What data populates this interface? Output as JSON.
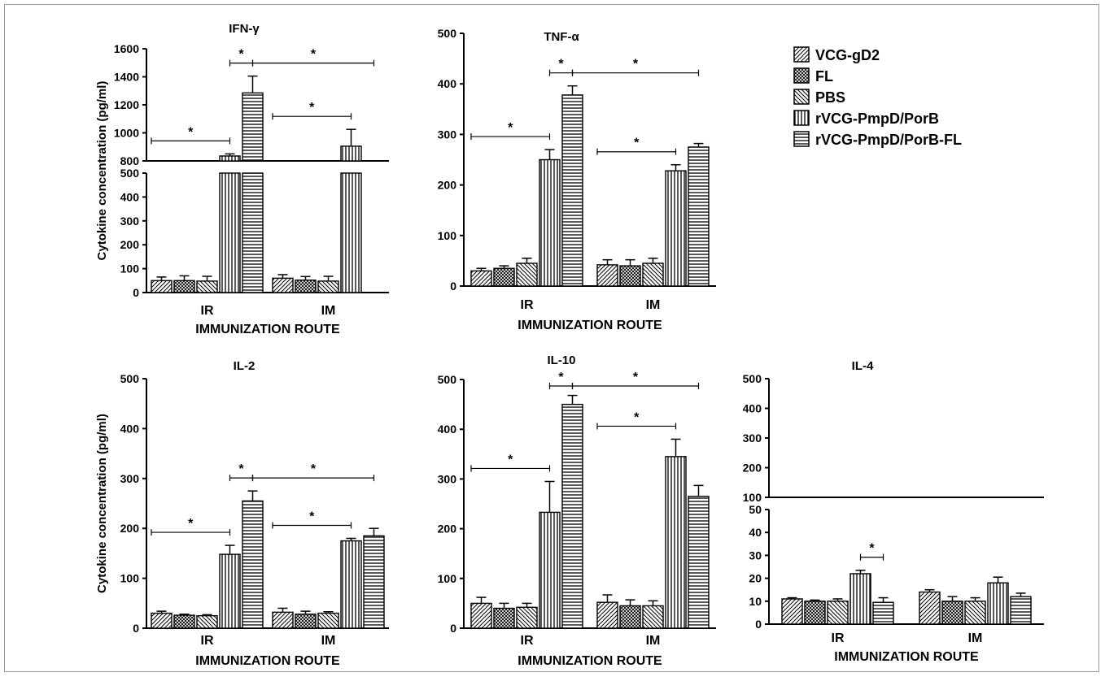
{
  "legend": [
    {
      "name": "VCG-gD2",
      "pattern": "diag-right"
    },
    {
      "name": "FL",
      "pattern": "cross"
    },
    {
      "name": "PBS",
      "pattern": "diag-left"
    },
    {
      "name": "rVCG-PmpD/PorB",
      "pattern": "vertical"
    },
    {
      "name": "rVCG-PmpD/PorB-FL",
      "pattern": "horizontal"
    }
  ],
  "colors": {
    "axis": "#000000",
    "bar_stroke": "#000000",
    "pattern": "#000000",
    "frame": "#9a9a9a"
  },
  "chart_data": [
    {
      "type": "bar",
      "title": "IFN-γ",
      "ylabel": "Cytokine concentration (pg/ml)",
      "xlabel": "IMMUNIZATION ROUTE",
      "categories": [
        "IR",
        "IM"
      ],
      "broken_axis": {
        "lower": [
          0,
          500
        ],
        "upper": [
          800,
          1600
        ]
      },
      "yticks_lower": [
        0,
        100,
        200,
        300,
        400,
        500
      ],
      "yticks_upper": [
        800,
        1000,
        1200,
        1400,
        1600
      ],
      "series": [
        {
          "name": "VCG-gD2",
          "values": [
            50,
            60
          ],
          "errors": [
            15,
            15
          ]
        },
        {
          "name": "FL",
          "values": [
            50,
            52
          ],
          "errors": [
            20,
            15
          ]
        },
        {
          "name": "PBS",
          "values": [
            48,
            48
          ],
          "errors": [
            20,
            20
          ]
        },
        {
          "name": "rVCG-PmpD/PorB",
          "values": [
            835,
            905
          ],
          "errors": [
            15,
            120
          ]
        },
        {
          "name": "rVCG-PmpD/PorB-FL",
          "values": [
            1285,
            null
          ],
          "errors": [
            120,
            null
          ]
        }
      ],
      "annotations": [
        {
          "label": "*",
          "from": [
            0,
            0
          ],
          "to": [
            0,
            3
          ]
        },
        {
          "label": "*",
          "from": [
            0,
            3
          ],
          "to": [
            0,
            4
          ]
        },
        {
          "label": "*",
          "from": [
            0,
            4
          ],
          "to": [
            1,
            4
          ]
        },
        {
          "label": "*",
          "from": [
            1,
            0
          ],
          "to": [
            1,
            3
          ]
        }
      ]
    },
    {
      "type": "bar",
      "title": "TNF-α",
      "ylabel": "",
      "xlabel": "IMMUNIZATION ROUTE",
      "categories": [
        "IR",
        "IM"
      ],
      "ylim": [
        0,
        500
      ],
      "yticks": [
        0,
        100,
        200,
        300,
        400,
        500
      ],
      "series": [
        {
          "name": "VCG-gD2",
          "values": [
            30,
            42
          ],
          "errors": [
            5,
            10
          ]
        },
        {
          "name": "FL",
          "values": [
            35,
            40
          ],
          "errors": [
            5,
            12
          ]
        },
        {
          "name": "PBS",
          "values": [
            45,
            45
          ],
          "errors": [
            10,
            10
          ]
        },
        {
          "name": "rVCG-PmpD/PorB",
          "values": [
            250,
            228
          ],
          "errors": [
            20,
            12
          ]
        },
        {
          "name": "rVCG-PmpD/PorB-FL",
          "values": [
            378,
            275
          ],
          "errors": [
            18,
            7
          ]
        }
      ],
      "annotations": [
        {
          "label": "*",
          "from": [
            0,
            0
          ],
          "to": [
            0,
            3
          ]
        },
        {
          "label": "*",
          "from": [
            0,
            3
          ],
          "to": [
            0,
            4
          ]
        },
        {
          "label": "*",
          "from": [
            0,
            4
          ],
          "to": [
            1,
            4
          ]
        },
        {
          "label": "*",
          "from": [
            1,
            0
          ],
          "to": [
            1,
            3
          ]
        }
      ]
    },
    {
      "type": "bar",
      "title": "IL-2",
      "ylabel": "Cytokine concentration (pg/ml)",
      "xlabel": "IMMUNIZATION ROUTE",
      "categories": [
        "IR",
        "IM"
      ],
      "ylim": [
        0,
        500
      ],
      "yticks": [
        0,
        100,
        200,
        300,
        400,
        500
      ],
      "series": [
        {
          "name": "VCG-gD2",
          "values": [
            30,
            32
          ],
          "errors": [
            4,
            8
          ]
        },
        {
          "name": "FL",
          "values": [
            26,
            28
          ],
          "errors": [
            2,
            6
          ]
        },
        {
          "name": "PBS",
          "values": [
            25,
            30
          ],
          "errors": [
            2,
            3
          ]
        },
        {
          "name": "rVCG-PmpD/PorB",
          "values": [
            148,
            175
          ],
          "errors": [
            18,
            5
          ]
        },
        {
          "name": "rVCG-PmpD/PorB-FL",
          "values": [
            255,
            185
          ],
          "errors": [
            20,
            15
          ]
        }
      ],
      "annotations": [
        {
          "label": "*",
          "from": [
            0,
            0
          ],
          "to": [
            0,
            3
          ]
        },
        {
          "label": "*",
          "from": [
            0,
            3
          ],
          "to": [
            0,
            4
          ]
        },
        {
          "label": "*",
          "from": [
            0,
            4
          ],
          "to": [
            1,
            4
          ]
        },
        {
          "label": "*",
          "from": [
            1,
            0
          ],
          "to": [
            1,
            3
          ]
        }
      ]
    },
    {
      "type": "bar",
      "title": "IL-10",
      "ylabel": "",
      "xlabel": "IMMUNIZATION ROUTE",
      "categories": [
        "IR",
        "IM"
      ],
      "ylim": [
        0,
        500
      ],
      "yticks": [
        0,
        100,
        200,
        300,
        400,
        500
      ],
      "series": [
        {
          "name": "VCG-gD2",
          "values": [
            50,
            52
          ],
          "errors": [
            12,
            15
          ]
        },
        {
          "name": "FL",
          "values": [
            40,
            45
          ],
          "errors": [
            10,
            12
          ]
        },
        {
          "name": "PBS",
          "values": [
            42,
            45
          ],
          "errors": [
            8,
            10
          ]
        },
        {
          "name": "rVCG-PmpD/PorB",
          "values": [
            233,
            345
          ],
          "errors": [
            62,
            35
          ]
        },
        {
          "name": "rVCG-PmpD/PorB-FL",
          "values": [
            450,
            265
          ],
          "errors": [
            18,
            22
          ]
        }
      ],
      "annotations": [
        {
          "label": "*",
          "from": [
            0,
            0
          ],
          "to": [
            0,
            3
          ]
        },
        {
          "label": "*",
          "from": [
            0,
            3
          ],
          "to": [
            0,
            4
          ]
        },
        {
          "label": "*",
          "from": [
            0,
            4
          ],
          "to": [
            1,
            4
          ]
        },
        {
          "label": "*",
          "from": [
            1,
            0
          ],
          "to": [
            1,
            3
          ]
        }
      ]
    },
    {
      "type": "bar",
      "title": "IL-4",
      "ylabel": "",
      "xlabel": "IMMUNIZATION ROUTE",
      "categories": [
        "IR",
        "IM"
      ],
      "broken_axis": {
        "lower": [
          0,
          50
        ],
        "upper": [
          100,
          500
        ]
      },
      "yticks_lower": [
        0,
        10,
        20,
        30,
        40,
        50
      ],
      "yticks_upper": [
        100,
        200,
        300,
        400,
        500
      ],
      "series": [
        {
          "name": "VCG-gD2",
          "values": [
            11,
            14
          ],
          "errors": [
            0.5,
            1
          ]
        },
        {
          "name": "FL",
          "values": [
            10,
            10
          ],
          "errors": [
            0.5,
            2
          ]
        },
        {
          "name": "PBS",
          "values": [
            10,
            10
          ],
          "errors": [
            1,
            1.5
          ]
        },
        {
          "name": "rVCG-PmpD/PorB",
          "values": [
            22,
            18
          ],
          "errors": [
            1.5,
            2.5
          ]
        },
        {
          "name": "rVCG-PmpD/PorB-FL",
          "values": [
            9.5,
            12
          ],
          "errors": [
            2,
            1.5
          ]
        }
      ],
      "annotations": [
        {
          "label": "*",
          "from": [
            0,
            3
          ],
          "to": [
            0,
            4
          ]
        }
      ]
    }
  ]
}
